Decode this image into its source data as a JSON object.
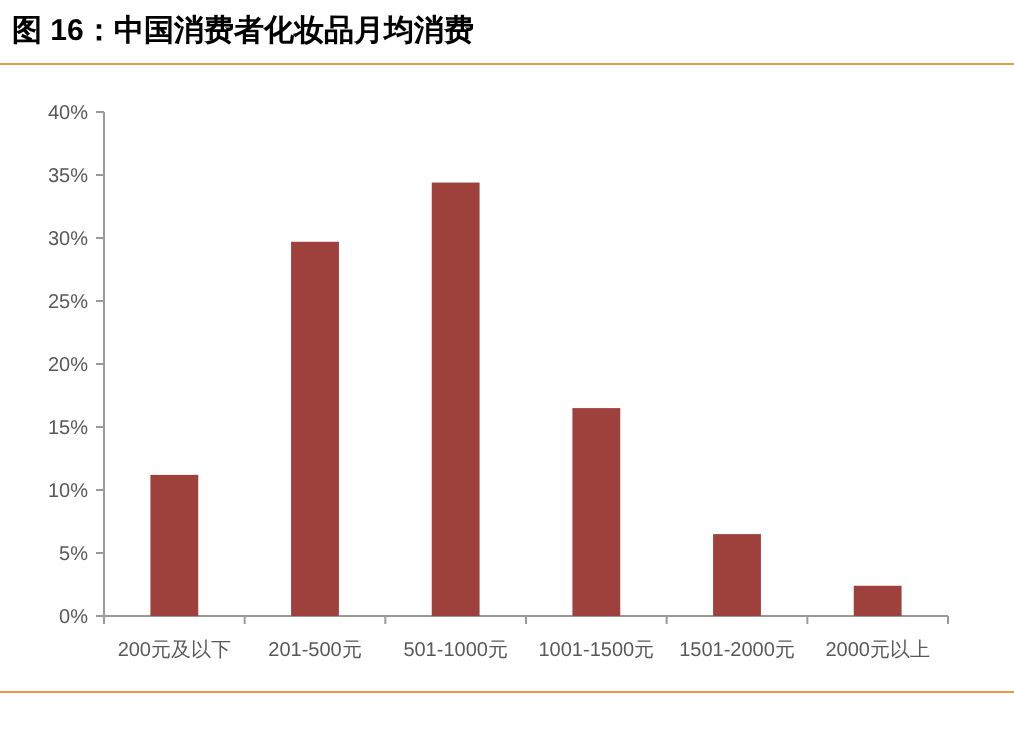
{
  "chart_data": {
    "type": "bar",
    "title": "图 16：中国消费者化妆品月均消费",
    "categories": [
      "200元及以下",
      "201-500元",
      "501-1000元",
      "1001-1500元",
      "1501-2000元",
      "2000元以上"
    ],
    "values": [
      11.2,
      29.7,
      34.4,
      16.5,
      6.5,
      2.4
    ],
    "color": "#9e413d",
    "ylim": [
      0,
      40
    ],
    "yticks": [
      {
        "value": 0,
        "label": "0%"
      },
      {
        "value": 5,
        "label": "5%"
      },
      {
        "value": 10,
        "label": "10%"
      },
      {
        "value": 15,
        "label": "15%"
      },
      {
        "value": 20,
        "label": "20%"
      },
      {
        "value": 25,
        "label": "25%"
      },
      {
        "value": 30,
        "label": "30%"
      },
      {
        "value": 35,
        "label": "35%"
      },
      {
        "value": 40,
        "label": "40%"
      }
    ],
    "grid": false
  }
}
